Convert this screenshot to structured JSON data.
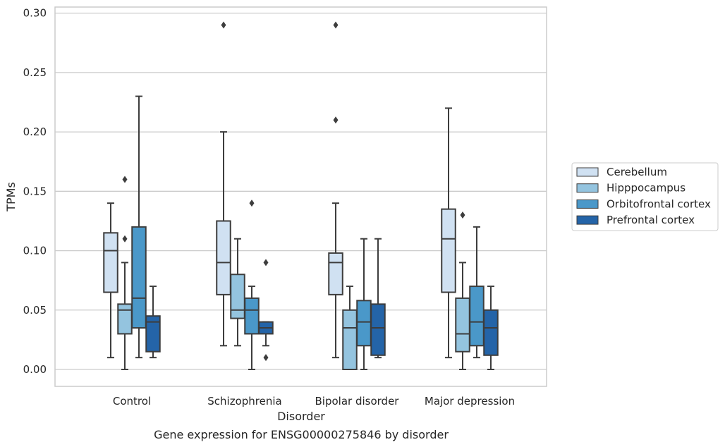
{
  "chart_data": {
    "type": "boxplot",
    "caption": "Gene expression for ENSG00000275846 by disorder",
    "xlabel": "Disorder",
    "ylabel": "TPMs",
    "ylim": [
      -0.014,
      0.305
    ],
    "yticks": [
      0.0,
      0.05,
      0.1,
      0.15,
      0.2,
      0.25,
      0.3
    ],
    "ytick_labels": [
      "0.00",
      "0.05",
      "0.10",
      "0.15",
      "0.20",
      "0.25",
      "0.30"
    ],
    "grid": "horizontal",
    "legend_position": "right",
    "categories": [
      "Control",
      "Schizophrenia",
      "Bipolar disorder",
      "Major depression"
    ],
    "series": [
      {
        "name": "Cerebellum",
        "color": "#d0e1f2",
        "boxes": [
          {
            "whisker_low": 0.01,
            "q1": 0.065,
            "median": 0.1,
            "q3": 0.115,
            "whisker_high": 0.14,
            "outliers": []
          },
          {
            "whisker_low": 0.02,
            "q1": 0.063,
            "median": 0.09,
            "q3": 0.125,
            "whisker_high": 0.2,
            "outliers": [
              0.29
            ]
          },
          {
            "whisker_low": 0.01,
            "q1": 0.063,
            "median": 0.09,
            "q3": 0.098,
            "whisker_high": 0.14,
            "outliers": [
              0.21,
              0.29
            ]
          },
          {
            "whisker_low": 0.01,
            "q1": 0.065,
            "median": 0.11,
            "q3": 0.135,
            "whisker_high": 0.22,
            "outliers": []
          }
        ]
      },
      {
        "name": "Hipppocampus",
        "color": "#94c4df",
        "boxes": [
          {
            "whisker_low": 0.0,
            "q1": 0.03,
            "median": 0.05,
            "q3": 0.055,
            "whisker_high": 0.09,
            "outliers": [
              0.11,
              0.16
            ]
          },
          {
            "whisker_low": 0.02,
            "q1": 0.043,
            "median": 0.05,
            "q3": 0.08,
            "whisker_high": 0.11,
            "outliers": []
          },
          {
            "whisker_low": 0.0,
            "q1": 0.0,
            "median": 0.035,
            "q3": 0.05,
            "whisker_high": 0.07,
            "outliers": []
          },
          {
            "whisker_low": 0.0,
            "q1": 0.015,
            "median": 0.03,
            "q3": 0.06,
            "whisker_high": 0.09,
            "outliers": [
              0.13
            ]
          }
        ]
      },
      {
        "name": "Orbitofrontal cortex",
        "color": "#4a98c9",
        "boxes": [
          {
            "whisker_low": 0.01,
            "q1": 0.035,
            "median": 0.06,
            "q3": 0.12,
            "whisker_high": 0.23,
            "outliers": []
          },
          {
            "whisker_low": 0.0,
            "q1": 0.03,
            "median": 0.05,
            "q3": 0.06,
            "whisker_high": 0.07,
            "outliers": [
              0.14
            ]
          },
          {
            "whisker_low": 0.0,
            "q1": 0.02,
            "median": 0.04,
            "q3": 0.058,
            "whisker_high": 0.11,
            "outliers": []
          },
          {
            "whisker_low": 0.01,
            "q1": 0.02,
            "median": 0.04,
            "q3": 0.07,
            "whisker_high": 0.12,
            "outliers": []
          }
        ]
      },
      {
        "name": "Prefrontal cortex",
        "color": "#2464a8",
        "boxes": [
          {
            "whisker_low": 0.01,
            "q1": 0.015,
            "median": 0.04,
            "q3": 0.045,
            "whisker_high": 0.07,
            "outliers": []
          },
          {
            "whisker_low": 0.02,
            "q1": 0.03,
            "median": 0.035,
            "q3": 0.04,
            "whisker_high": 0.04,
            "outliers": [
              0.01,
              0.09
            ]
          },
          {
            "whisker_low": 0.01,
            "q1": 0.012,
            "median": 0.035,
            "q3": 0.055,
            "whisker_high": 0.11,
            "outliers": []
          },
          {
            "whisker_low": 0.0,
            "q1": 0.012,
            "median": 0.035,
            "q3": 0.05,
            "whisker_high": 0.07,
            "outliers": []
          }
        ]
      }
    ]
  }
}
